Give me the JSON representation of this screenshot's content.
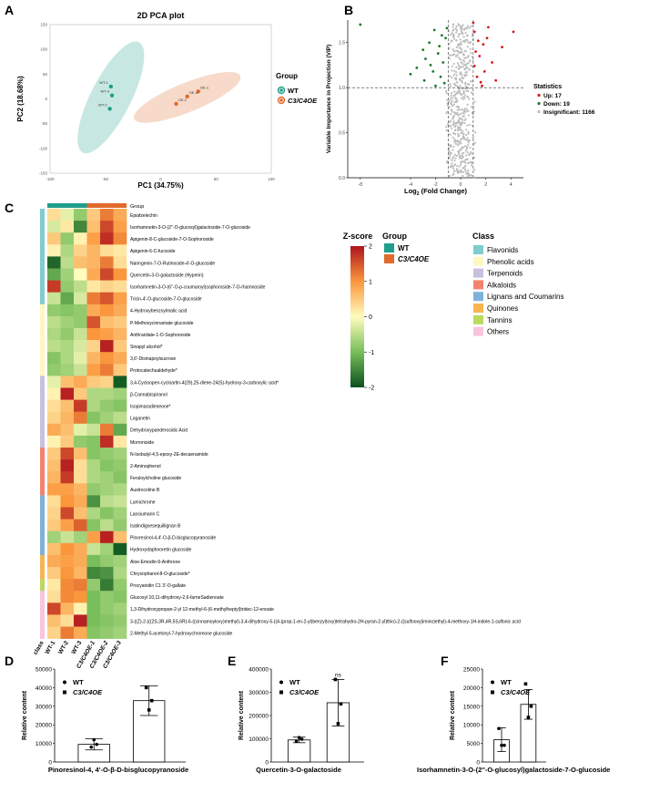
{
  "panel_letters": {
    "a": "A",
    "b": "B",
    "c": "C",
    "d": "D",
    "e": "E",
    "f": "F"
  },
  "colors": {
    "wt": "#1f9e8a",
    "oe": "#e26a2c",
    "up": "#d7191c",
    "down": "#1a7a2e",
    "insig": "#bdbdbd"
  },
  "chart_data": [
    {
      "id": "A",
      "type": "scatter",
      "title": "2D PCA plot",
      "xlabel": "PC1 (34.75%)",
      "ylabel": "PC2 (18.68%)",
      "xlim": [
        -100,
        100
      ],
      "ylim": [
        -150,
        150
      ],
      "xticks": [
        "-100",
        "-50",
        "0",
        "50",
        "100"
      ],
      "yticks": [
        "-150",
        "-100",
        "-50",
        "0",
        "50",
        "100",
        "150"
      ],
      "legend": {
        "title": "Group",
        "entries": [
          "WT",
          "C3/C4OE"
        ]
      },
      "series": [
        {
          "name": "WT",
          "points": [
            {
              "label": "WT-1",
              "x": -45,
              "y": 25
            },
            {
              "label": "WT-2",
              "x": -46,
              "y": -20
            },
            {
              "label": "WT-3",
              "x": -44,
              "y": 7
            }
          ]
        },
        {
          "name": "C3/C4OE",
          "points": [
            {
              "label": "OE-1",
              "x": 34,
              "y": 15
            },
            {
              "label": "OE-2",
              "x": 14,
              "y": -10
            },
            {
              "label": "OE-3",
              "x": 24,
              "y": 5
            }
          ]
        }
      ]
    },
    {
      "id": "B",
      "type": "scatter",
      "xlabel": "Log2 (Fold Change)",
      "xlabel_main": "Log",
      "xlabel_sub": "2",
      "xlabel_rest": " (Fold Change)",
      "ylabel": "Variable Importance in Projection (VIP)",
      "xlim": [
        -9,
        5
      ],
      "ylim": [
        0,
        1.75
      ],
      "xticks": [
        "-8",
        "-4",
        "-2",
        "0",
        "2",
        "4"
      ],
      "yticks": [
        "0.0",
        "0.5",
        "1.0",
        "1.5"
      ],
      "thresholds": {
        "x": [
          -1,
          1
        ],
        "y": 1.0
      },
      "legend": {
        "title": "Statistics",
        "entries": [
          "Up: 17",
          "Down: 19",
          "Insignificant: 1166"
        ]
      },
      "up_points": [
        [
          1.0,
          1.72
        ],
        [
          4.2,
          1.62
        ],
        [
          2.1,
          1.55
        ],
        [
          1.8,
          1.48
        ],
        [
          3.3,
          1.45
        ],
        [
          1.2,
          1.4
        ],
        [
          1.5,
          1.35
        ],
        [
          2.5,
          1.28
        ],
        [
          1.1,
          1.24
        ],
        [
          1.9,
          1.18
        ],
        [
          1.3,
          1.12
        ],
        [
          2.8,
          1.08
        ],
        [
          1.6,
          1.06
        ],
        [
          1.1,
          1.62
        ],
        [
          2.2,
          1.67
        ],
        [
          1.4,
          1.52
        ],
        [
          1.7,
          1.02
        ]
      ],
      "down_points": [
        [
          -8.0,
          1.7
        ],
        [
          -2.1,
          1.64
        ],
        [
          -1.5,
          1.58
        ],
        [
          -1.2,
          1.55
        ],
        [
          -2.5,
          1.5
        ],
        [
          -3.0,
          1.42
        ],
        [
          -1.8,
          1.38
        ],
        [
          -2.8,
          1.32
        ],
        [
          -1.4,
          1.28
        ],
        [
          -3.5,
          1.22
        ],
        [
          -2.2,
          1.18
        ],
        [
          -1.6,
          1.12
        ],
        [
          -4.0,
          1.15
        ],
        [
          -2.9,
          1.08
        ],
        [
          -1.3,
          1.05
        ],
        [
          -2.0,
          1.02
        ],
        [
          -1.1,
          1.66
        ],
        [
          -1.7,
          1.46
        ],
        [
          -2.4,
          1.25
        ]
      ]
    },
    {
      "id": "C",
      "type": "heatmap",
      "annotation_labels": {
        "group_row": "Group",
        "class_col": "class"
      },
      "samples": [
        "WT-1",
        "WT-2",
        "WT-3",
        "C3/C4OE-1",
        "C3/C4OE-2",
        "C3/C4OE-3"
      ],
      "sample_groups": [
        "WT",
        "WT",
        "WT",
        "C3/C4OE",
        "C3/C4OE",
        "C3/C4OE"
      ],
      "zscore_title": "Z-score",
      "zscore_ticks": [
        "2",
        "1",
        "0",
        "-1",
        "-2"
      ],
      "zlim": [
        -2,
        2
      ],
      "group_legend": {
        "title": "Group",
        "entries": [
          "WT",
          "C3/C4OE"
        ]
      },
      "class_legend": {
        "title": "Class",
        "entries": [
          {
            "name": "Flavonids",
            "color": "#7fcdcd"
          },
          {
            "name": "Phenolic acids",
            "color": "#fff7c2"
          },
          {
            "name": "Terpenoids",
            "color": "#c9c0de"
          },
          {
            "name": "Alkaloids",
            "color": "#f4836e"
          },
          {
            "name": "Lignans and Coumarins",
            "color": "#7fb2d8"
          },
          {
            "name": "Quinones",
            "color": "#f7b551"
          },
          {
            "name": "Tannins",
            "color": "#bcd860"
          },
          {
            "name": "Others",
            "color": "#fac4dc"
          }
        ]
      },
      "rows": [
        {
          "name": "Epiafzelechin",
          "class": 0,
          "values": [
            0.3,
            -0.2,
            -0.8,
            0.5,
            1.2,
            0.8
          ]
        },
        {
          "name": "Isorhamnetin-3-O-(2''-O-glucosyl)galactoside-7-O-glucoside",
          "class": 0,
          "values": [
            -0.3,
            0.2,
            -1.5,
            0.6,
            1.6,
            0.9
          ]
        },
        {
          "name": "Apigenin-8-C-glucoside-7-O-Sophoroside",
          "class": 0,
          "values": [
            0.5,
            -0.8,
            0.1,
            0.9,
            1.8,
            1.1
          ]
        },
        {
          "name": "Apigenin-6-C-fucoside",
          "class": 0,
          "values": [
            0.1,
            -0.6,
            0.4,
            0.7,
            0.3,
            0.2
          ]
        },
        {
          "name": "Naringenin-7-O-Rutinoside-4'-O-glucoside",
          "class": 0,
          "values": [
            -1.8,
            -0.5,
            0.6,
            0.7,
            1.2,
            0.3
          ]
        },
        {
          "name": "Quercetin-3-O-galactoside (Hyperin)",
          "class": 0,
          "values": [
            -1.2,
            -0.7,
            0.0,
            0.8,
            1.6,
            1.0
          ]
        },
        {
          "name": "Isorhamnetin-3-O-(6''-O-p-coumaroyl)sophoroside-7-O-rhamnoside",
          "class": 0,
          "values": [
            1.7,
            -0.8,
            -0.5,
            0.2,
            0.4,
            0.3
          ]
        },
        {
          "name": "Tricin-4'-O-glucoside-7-O-glucoside",
          "class": 0,
          "values": [
            -0.4,
            -1.2,
            -0.3,
            1.2,
            1.5,
            0.9
          ]
        },
        {
          "name": "4-Hydroxybenzoylmalic acid",
          "class": 1,
          "values": [
            -0.8,
            -0.9,
            -0.8,
            0.8,
            1.0,
            0.8
          ]
        },
        {
          "name": "P-Methoxycinnamate glucoside",
          "class": 1,
          "values": [
            -0.5,
            -0.7,
            -0.8,
            1.5,
            0.6,
            0.5
          ]
        },
        {
          "name": "Anthranilate-1-O-Sophoroside",
          "class": 1,
          "values": [
            -0.6,
            -0.8,
            -0.4,
            1.0,
            0.9,
            0.7
          ]
        },
        {
          "name": "Sinapyl alcohol*",
          "class": 1,
          "values": [
            -0.5,
            -0.6,
            -0.3,
            0.4,
            1.9,
            0.5
          ]
        },
        {
          "name": "3,6'-Disinapoylsucrose",
          "class": 1,
          "values": [
            -0.9,
            -0.6,
            -0.2,
            0.7,
            1.0,
            0.8
          ]
        },
        {
          "name": "Protocatechualdehyde*",
          "class": 1,
          "values": [
            -0.8,
            -0.7,
            -0.4,
            0.9,
            1.2,
            0.5
          ]
        },
        {
          "name": "3,4-Cycloopen-cycloartin-4(29),25-diene-24(S)-hydroxy-3-carboxylic acid*",
          "class": 2,
          "values": [
            -0.2,
            0.6,
            0.8,
            0.5,
            0.4,
            -1.9
          ]
        },
        {
          "name": "β-Cannabispiranol",
          "class": 2,
          "values": [
            0.1,
            1.9,
            0.5,
            -0.6,
            -0.6,
            -0.7
          ]
        },
        {
          "name": "Isopimaradieneone*",
          "class": 2,
          "values": [
            0.3,
            0.6,
            1.7,
            -0.6,
            -0.8,
            -0.9
          ]
        },
        {
          "name": "Loganetin",
          "class": 2,
          "values": [
            0.4,
            0.7,
            1.2,
            -0.9,
            -0.7,
            -0.5
          ]
        },
        {
          "name": "Dehydroxypaederosidic Acid",
          "class": 2,
          "values": [
            0.8,
            0.6,
            -0.2,
            -0.4,
            1.2,
            -1.2
          ]
        },
        {
          "name": "Morroniside",
          "class": 2,
          "values": [
            0.1,
            0.5,
            -0.8,
            -0.9,
            1.8,
            0.2
          ]
        },
        {
          "name": "N-Isobutyl-4,5-epoxy-2E-decaenamide",
          "class": 3,
          "values": [
            0.5,
            1.6,
            0.6,
            -0.9,
            -0.8,
            -0.7
          ]
        },
        {
          "name": "2-Aminophenol",
          "class": 3,
          "values": [
            0.6,
            1.9,
            0.3,
            -0.6,
            -0.9,
            -0.8
          ]
        },
        {
          "name": "Feruloylcholine glucoside",
          "class": 3,
          "values": [
            0.7,
            1.7,
            0.3,
            -0.6,
            -0.7,
            -0.9
          ]
        },
        {
          "name": "Austrocoline B",
          "class": 3,
          "values": [
            0.9,
            0.9,
            0.7,
            -0.8,
            -0.7,
            -0.6
          ]
        },
        {
          "name": "Lumichrome",
          "class": 4,
          "values": [
            0.3,
            1.0,
            0.8,
            -1.4,
            -0.5,
            -0.4
          ]
        },
        {
          "name": "Lansiumarin C",
          "class": 4,
          "values": [
            0.4,
            1.6,
            0.6,
            -0.6,
            -0.9,
            -0.7
          ]
        },
        {
          "name": "Isatindigoesequillignan B",
          "class": 4,
          "values": [
            0.5,
            0.9,
            1.4,
            -0.9,
            -0.5,
            -0.8
          ]
        },
        {
          "name": "Pinoresinol-4,4'-O-β-D-bisglucopyranoside",
          "class": 4,
          "values": [
            -0.7,
            -0.4,
            -0.7,
            0.9,
            1.9,
            0.6
          ]
        },
        {
          "name": "Hydroxydaphnoretin glucoside",
          "class": 4,
          "values": [
            0.6,
            1.0,
            0.8,
            -0.4,
            -0.7,
            -1.9
          ]
        },
        {
          "name": "Aloe-Emodin-9-Anthrone",
          "class": 5,
          "values": [
            0.8,
            0.9,
            0.8,
            -1.0,
            -0.8,
            -0.7
          ]
        },
        {
          "name": "Chrysophanol-8-O-glucoside*",
          "class": 5,
          "values": [
            0.5,
            1.0,
            0.7,
            -1.5,
            -1.4,
            -0.6
          ]
        },
        {
          "name": "Procyanidin C1 3'-O-gallate",
          "class": 6,
          "values": [
            0.2,
            1.1,
            1.2,
            -0.8,
            -1.6,
            -0.8
          ]
        },
        {
          "name": "Glucosyl 10,11-dihydroxy-2,6-farneSadienoate",
          "class": 7,
          "values": [
            0.3,
            1.1,
            1.0,
            -1.0,
            -0.8,
            -0.9
          ]
        },
        {
          "name": "1,3-Dihydroxypropan-2-yl 12-methyl-6-(6-methylheptyl)tridec-12-enoate",
          "class": 7,
          "values": [
            1.6,
            0.7,
            0.1,
            -1.0,
            -0.8,
            -0.7
          ]
        },
        {
          "name": "3-((Z)-2-(((2S,3R,4R,5S,6R)-6-((cinnamoyloxy)methyl)-3,4-dihydroxy-5-((4-(prop-1-en-2-yl)benzyl)oxy)tetrahydro-2H-pyran-2-yl)thio)-2-((sulfooxy)imino)ethyl)-4-methoxy-1H-indole-1-sulfonic acid",
          "class": 7,
          "values": [
            0.6,
            0.3,
            1.9,
            -1.0,
            -0.9,
            -0.8
          ]
        },
        {
          "name": "2-Methyl-5-acetonyl-7-hydroxychromone glucoside",
          "class": 7,
          "values": [
            0.4,
            1.2,
            0.8,
            -0.9,
            -0.8,
            -0.7
          ]
        }
      ]
    },
    {
      "id": "D",
      "type": "bar",
      "ylabel": "Relative content",
      "xlabel": "Pinoresinol-4, 4'-O-β-D-bisglucopyranoside",
      "ylim": [
        0,
        50000
      ],
      "yticks": [
        "0",
        "10000",
        "20000",
        "30000",
        "40000",
        "50000"
      ],
      "categories": [
        "WT",
        "C3/C4OE"
      ],
      "values": [
        9500,
        33000
      ],
      "errors": [
        3000,
        8000
      ],
      "points": [
        [
          8000,
          12000,
          9500
        ],
        [
          40000,
          28000,
          33000
        ]
      ],
      "legend": [
        "WT",
        "C3/C4OE"
      ]
    },
    {
      "id": "E",
      "type": "bar",
      "ylabel": "Relative content",
      "xlabel": "Quercetin-3-O-galactoside",
      "ylim": [
        0,
        400000
      ],
      "yticks": [
        "0",
        "100000",
        "200000",
        "300000",
        "400000"
      ],
      "categories": [
        "WT",
        "C3/C4OE"
      ],
      "values": [
        95000,
        255000
      ],
      "errors": [
        12000,
        100000
      ],
      "points": [
        [
          90000,
          105000,
          98000
        ],
        [
          355000,
          165000,
          250000
        ]
      ],
      "annotation": "ns",
      "legend": [
        "WT",
        "C3/C4OE"
      ]
    },
    {
      "id": "F",
      "type": "bar",
      "ylabel": "Relative content",
      "xlabel": "Isorhamnetin-3-O-(2''-O-glucosyl)galactoside-7-O-glucoside",
      "ylim": [
        0,
        25000
      ],
      "yticks": [
        "0",
        "5000",
        "10000",
        "15000",
        "20000",
        "25000"
      ],
      "categories": [
        "WT",
        "C3/C4OE"
      ],
      "values": [
        6000,
        15500
      ],
      "errors": [
        3200,
        4000
      ],
      "points": [
        [
          9000,
          4500,
          4500
        ],
        [
          21000,
          12000,
          15000
        ]
      ],
      "legend": [
        "WT",
        "C3/C4OE"
      ]
    }
  ]
}
